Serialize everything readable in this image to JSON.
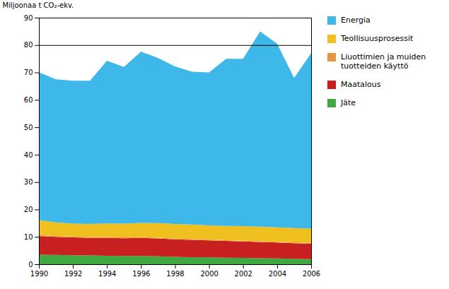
{
  "chart_data": {
    "type": "area",
    "stacked": true,
    "x": [
      1990,
      1991,
      1992,
      1993,
      1994,
      1995,
      1996,
      1997,
      1998,
      1999,
      2000,
      2001,
      2002,
      2003,
      2004,
      2005,
      2006
    ],
    "series": [
      {
        "name": "Jäte",
        "color": "#40A840",
        "values": [
          3.5,
          3.4,
          3.3,
          3.2,
          3.1,
          3.0,
          3.0,
          2.9,
          2.7,
          2.6,
          2.5,
          2.4,
          2.3,
          2.2,
          2.1,
          2.0,
          1.9
        ]
      },
      {
        "name": "Maatalous",
        "color": "#C82020",
        "values": [
          6.8,
          6.6,
          6.5,
          6.4,
          6.5,
          6.5,
          6.6,
          6.5,
          6.4,
          6.3,
          6.2,
          6.1,
          6.0,
          5.9,
          5.8,
          5.7,
          5.6
        ]
      },
      {
        "name": "Liuottimien ja muiden\ntuotteiden käyttö",
        "color": "#E8943A",
        "values": [
          0.3,
          0.3,
          0.3,
          0.3,
          0.3,
          0.3,
          0.3,
          0.3,
          0.3,
          0.3,
          0.3,
          0.3,
          0.3,
          0.3,
          0.3,
          0.3,
          0.3
        ]
      },
      {
        "name": "Teollisuusprosessit",
        "color": "#F0C020",
        "values": [
          5.5,
          5.0,
          4.7,
          4.8,
          5.0,
          5.0,
          5.2,
          5.3,
          5.3,
          5.3,
          5.2,
          5.2,
          5.3,
          5.3,
          5.3,
          5.2,
          5.2
        ]
      },
      {
        "name": "Energia",
        "color": "#3DB8E8",
        "values": [
          54.0,
          52.2,
          52.2,
          52.3,
          59.4,
          57.2,
          62.5,
          60.3,
          57.5,
          55.8,
          55.8,
          61.0,
          61.1,
          71.3,
          67.0,
          54.8,
          64.0
        ]
      }
    ],
    "hline": 80,
    "xlim": [
      1990,
      2006
    ],
    "xticks": [
      1990,
      1992,
      1994,
      1996,
      1998,
      2000,
      2002,
      2004,
      2006
    ],
    "ylim": [
      0,
      90
    ],
    "yticks": [
      0,
      10,
      20,
      30,
      40,
      50,
      60,
      70,
      80,
      90
    ],
    "ylabel": "Miljoonaa t CO₂-ekv.",
    "grid": false,
    "legend": "right"
  }
}
